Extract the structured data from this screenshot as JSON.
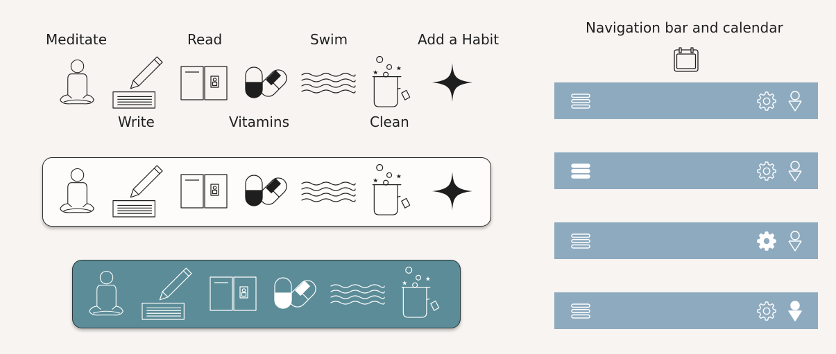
{
  "labels": {
    "meditate": "Meditate",
    "read": "Read",
    "swim": "Swim",
    "add_habit": "Add a Habit",
    "write": "Write",
    "vitamins": "Vitamins",
    "clean": "Clean"
  },
  "nav_section": {
    "title": "Navigation bar and calendar"
  },
  "colors": {
    "page_background": "#f8f4f1",
    "light_panel": "#fdfcfb",
    "teal_panel": "#5b8c97",
    "navbar": "#8eaabf",
    "icon_line": "#1e1e1e",
    "icon_light": "#ffffff"
  },
  "icons": {
    "habits": [
      "meditate-icon",
      "write-icon",
      "read-icon",
      "vitamins-icon",
      "swim-icon",
      "clean-icon",
      "add-habit-icon"
    ],
    "calendar": "calendar-icon",
    "navbar": [
      "menu-icon",
      "settings-icon",
      "profile-icon"
    ]
  },
  "navbar_variants": [
    {
      "active": "none"
    },
    {
      "active": "menu"
    },
    {
      "active": "settings"
    },
    {
      "active": "profile"
    }
  ]
}
